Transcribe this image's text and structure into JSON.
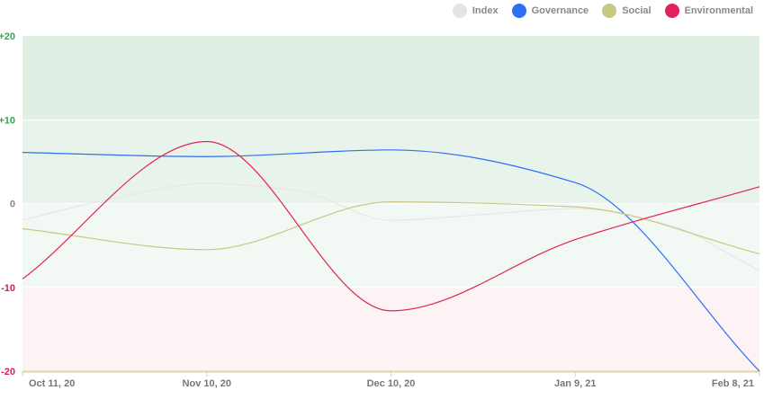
{
  "chart_data": {
    "type": "line",
    "title": "",
    "xlabel": "",
    "ylabel": "",
    "ylim": [
      -20,
      20
    ],
    "y_ticks": [
      {
        "value": 20,
        "label": "+20",
        "color": "#34a853"
      },
      {
        "value": 10,
        "label": "+10",
        "color": "#34a853"
      },
      {
        "value": 0,
        "label": "0",
        "color": "#888888"
      },
      {
        "value": -10,
        "label": "-10",
        "color": "#d81b60"
      },
      {
        "value": -20,
        "label": "-20",
        "color": "#d81b60"
      }
    ],
    "x_ticks": [
      "Oct 11, 20",
      "Nov 10, 20",
      "Dec 10, 20",
      "Jan 9, 21",
      "Feb 8, 21"
    ],
    "x_dates": [
      "2020-10-11",
      "2020-11-10",
      "2020-12-10",
      "2021-01-09",
      "2021-02-08"
    ],
    "bands": [
      {
        "from": 10,
        "to": 20,
        "color": "#dfefe4"
      },
      {
        "from": 0,
        "to": 10,
        "color": "#e8f3ec"
      },
      {
        "from": -10,
        "to": 0,
        "color": "#f2f8f4"
      },
      {
        "from": -20,
        "to": -10,
        "color": "#fdf2f4"
      }
    ],
    "legend_position": "top-right",
    "grid": false,
    "series": [
      {
        "name": "Index",
        "color": "#e8e2e6",
        "points": [
          [
            "2020-10-11",
            -2
          ],
          [
            "2020-10-25",
            0.5
          ],
          [
            "2020-11-10",
            2.4
          ],
          [
            "2020-11-25",
            1.5
          ],
          [
            "2020-12-10",
            -2
          ],
          [
            "2020-12-25",
            -1.3
          ],
          [
            "2021-01-09",
            -0.6
          ],
          [
            "2021-01-24",
            -2.5
          ],
          [
            "2021-02-08",
            -8
          ]
        ]
      },
      {
        "name": "Governance",
        "color": "#2f6ff2",
        "points": [
          [
            "2020-10-11",
            6.1
          ],
          [
            "2020-11-10",
            5.6
          ],
          [
            "2020-12-10",
            6.4
          ],
          [
            "2021-01-09",
            2.5
          ],
          [
            "2021-02-08",
            -20
          ]
        ]
      },
      {
        "name": "Social",
        "color": "#c9c882",
        "points": [
          [
            "2020-10-11",
            -3
          ],
          [
            "2020-11-10",
            -5.5
          ],
          [
            "2020-12-10",
            0.2
          ],
          [
            "2021-01-09",
            -0.4
          ],
          [
            "2021-02-08",
            -6
          ]
        ]
      },
      {
        "name": "Environmental",
        "color": "#e3215b",
        "points": [
          [
            "2020-10-11",
            -9
          ],
          [
            "2020-11-10",
            7.4
          ],
          [
            "2020-12-10",
            -12.8
          ],
          [
            "2021-01-09",
            -4.3
          ],
          [
            "2021-02-08",
            2
          ]
        ]
      }
    ],
    "baseline_color": "#d9d6a8"
  }
}
